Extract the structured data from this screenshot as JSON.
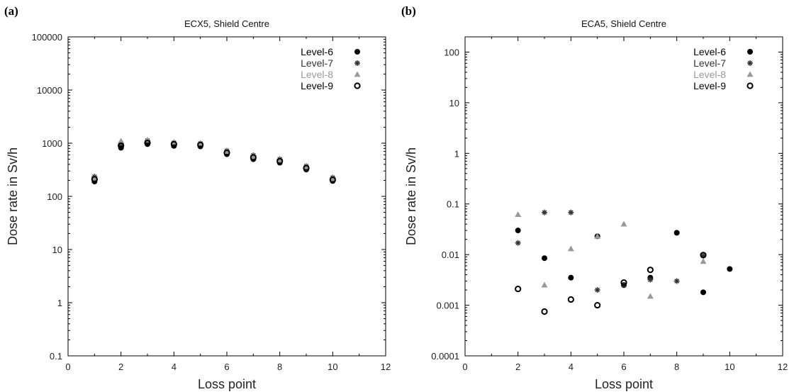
{
  "chart_data": [
    {
      "panel_label": "(a)",
      "type": "scatter",
      "title": "ECX5, Shield Centre",
      "xlabel": "Loss point",
      "ylabel": "Dose rate in Sv/h",
      "xlim": [
        0,
        12
      ],
      "ylim": [
        0.1,
        100000
      ],
      "yscale": "log",
      "xticks": [
        "0",
        "2",
        "4",
        "6",
        "8",
        "10",
        "12"
      ],
      "yticks": [
        "0.1",
        "1",
        "10",
        "100",
        "1000",
        "10000",
        "100000"
      ],
      "legend_position": "top-right",
      "series": [
        {
          "name": "Level-6",
          "marker": "filled-circle",
          "color": "#000000",
          "points": [
            [
              1,
              190
            ],
            [
              2,
              820
            ],
            [
              3,
              960
            ],
            [
              4,
              890
            ],
            [
              5,
              870
            ],
            [
              6,
              620
            ],
            [
              7,
              500
            ],
            [
              8,
              430
            ],
            [
              9,
              320
            ],
            [
              10,
              195
            ]
          ]
        },
        {
          "name": "Level-7",
          "marker": "asterisk",
          "color": "#333333",
          "points": [
            [
              1,
              235
            ],
            [
              2,
              1000
            ],
            [
              3,
              1120
            ],
            [
              4,
              1020
            ],
            [
              5,
              990
            ],
            [
              6,
              720
            ],
            [
              7,
              590
            ],
            [
              8,
              500
            ],
            [
              9,
              370
            ],
            [
              10,
              225
            ]
          ]
        },
        {
          "name": "Level-8",
          "marker": "triangle",
          "color": "#999999",
          "points": [
            [
              1,
              220
            ],
            [
              2,
              1100
            ],
            [
              3,
              1150
            ],
            [
              4,
              1050
            ],
            [
              5,
              1000
            ],
            [
              6,
              700
            ],
            [
              7,
              560
            ],
            [
              8,
              480
            ],
            [
              9,
              360
            ],
            [
              10,
              215
            ]
          ]
        },
        {
          "name": "Level-9",
          "marker": "open-circle",
          "color": "#000000",
          "points": [
            [
              1,
              210
            ],
            [
              2,
              900
            ],
            [
              3,
              1010
            ],
            [
              4,
              960
            ],
            [
              5,
              930
            ],
            [
              6,
              660
            ],
            [
              7,
              540
            ],
            [
              8,
              460
            ],
            [
              9,
              340
            ],
            [
              10,
              205
            ]
          ]
        }
      ]
    },
    {
      "panel_label": "(b)",
      "type": "scatter",
      "title": "ECA5, Shield Centre",
      "xlabel": "Loss point",
      "ylabel": "Dose rate in Sv/h",
      "xlim": [
        0,
        12
      ],
      "ylim": [
        0.0001,
        200
      ],
      "yscale": "log",
      "xticks": [
        "0",
        "2",
        "4",
        "6",
        "8",
        "10",
        "12"
      ],
      "yticks": [
        "0.0001",
        "0.001",
        "0.01",
        "0.1",
        "1",
        "10",
        "100"
      ],
      "legend_position": "top-right",
      "series": [
        {
          "name": "Level-6",
          "marker": "filled-circle",
          "color": "#000000",
          "points": [
            [
              2,
              0.03
            ],
            [
              3,
              0.0085
            ],
            [
              4,
              0.0035
            ],
            [
              5,
              0.023
            ],
            [
              6,
              0.0025
            ],
            [
              7,
              0.0035
            ],
            [
              8,
              0.027
            ],
            [
              9,
              0.0018
            ],
            [
              10,
              0.0052
            ]
          ]
        },
        {
          "name": "Level-7",
          "marker": "asterisk",
          "color": "#333333",
          "points": [
            [
              2,
              0.017
            ],
            [
              3,
              0.068
            ],
            [
              4,
              0.068
            ],
            [
              5,
              0.002
            ],
            [
              6,
              0.0025
            ],
            [
              7,
              0.0032
            ],
            [
              8,
              0.003
            ],
            [
              9,
              0.0095
            ]
          ]
        },
        {
          "name": "Level-8",
          "marker": "triangle",
          "color": "#999999",
          "points": [
            [
              2,
              0.062
            ],
            [
              3,
              0.0025
            ],
            [
              4,
              0.013
            ],
            [
              5,
              0.023
            ],
            [
              6,
              0.04
            ],
            [
              7,
              0.0015
            ],
            [
              9,
              0.0073
            ]
          ]
        },
        {
          "name": "Level-9",
          "marker": "open-circle",
          "color": "#000000",
          "points": [
            [
              2,
              0.0021
            ],
            [
              3,
              0.00075
            ],
            [
              4,
              0.0013
            ],
            [
              5,
              0.001
            ],
            [
              6,
              0.0028
            ],
            [
              7,
              0.005
            ],
            [
              9,
              0.0098
            ]
          ]
        }
      ]
    }
  ]
}
